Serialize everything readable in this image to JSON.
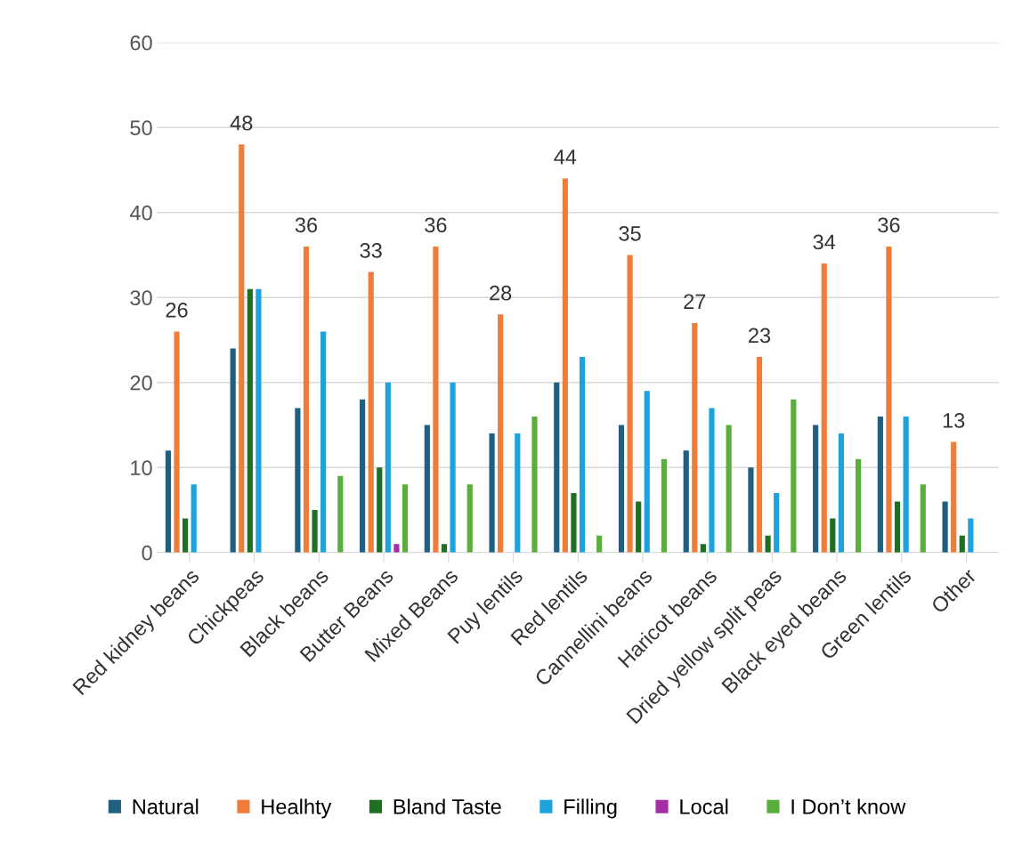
{
  "chart_data": {
    "type": "bar",
    "categories": [
      "Red kidney beans",
      "Chickpeas",
      "Black beans",
      "Butter Beans",
      "Mixed Beans",
      "Puy lentils",
      "Red lentils",
      "Cannellini beans",
      "Haricot beans",
      "Dried yellow split peas",
      "Black eyed beans",
      "Green lentils",
      "Other"
    ],
    "series": [
      {
        "name": "Natural",
        "color": "#1f5f7f",
        "values": [
          12,
          24,
          17,
          18,
          15,
          14,
          20,
          15,
          12,
          10,
          15,
          16,
          6
        ]
      },
      {
        "name": "Healhty",
        "color": "#f07c3a",
        "values": [
          26,
          48,
          36,
          33,
          36,
          28,
          44,
          35,
          27,
          23,
          34,
          36,
          13
        ],
        "value_labels": [
          "26",
          "48",
          "36",
          "33",
          "36",
          "28",
          "44",
          "35",
          "27",
          "23",
          "34",
          "36",
          "13"
        ]
      },
      {
        "name": "Bland Taste",
        "color": "#1e6e24",
        "values": [
          4,
          31,
          5,
          10,
          1,
          null,
          7,
          6,
          1,
          2,
          4,
          6,
          2
        ]
      },
      {
        "name": "Filling",
        "color": "#1ca3dd",
        "values": [
          8,
          31,
          26,
          20,
          20,
          14,
          23,
          19,
          17,
          7,
          14,
          16,
          4
        ]
      },
      {
        "name": "Local",
        "color": "#a32ea6",
        "values": [
          null,
          null,
          null,
          1,
          null,
          null,
          null,
          null,
          null,
          null,
          null,
          null,
          null
        ]
      },
      {
        "name": "I Don’t know",
        "color": "#5aaf3a",
        "values": [
          null,
          null,
          9,
          8,
          8,
          16,
          2,
          11,
          15,
          18,
          11,
          8,
          null
        ]
      }
    ],
    "ylim": [
      0,
      60
    ],
    "yticks": [
      0,
      10,
      20,
      30,
      40,
      50,
      60
    ],
    "grid": "y",
    "legend": "bottom"
  }
}
